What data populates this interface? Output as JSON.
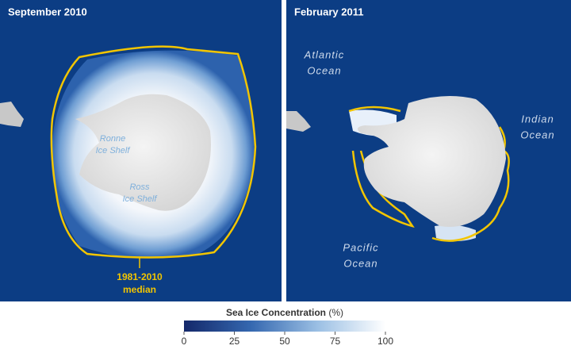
{
  "panels": [
    {
      "title": "September 2010",
      "labels": [
        {
          "lines": [
            "Ronne",
            "Ice Shelf"
          ]
        },
        {
          "lines": [
            "Ross",
            "Ice Shelf"
          ]
        }
      ],
      "median_label": [
        "1981-2010",
        "median"
      ]
    },
    {
      "title": "February 2011",
      "labels": [
        {
          "lines": [
            "Atlantic",
            "Ocean"
          ]
        },
        {
          "lines": [
            "Indian",
            "Ocean"
          ]
        },
        {
          "lines": [
            "Pacific",
            "Ocean"
          ]
        }
      ]
    }
  ],
  "colorbar": {
    "title": "Sea Ice Concentration",
    "unit": "(%)",
    "range": [
      0,
      100
    ],
    "ticks": [
      0,
      25,
      50,
      75,
      100
    ],
    "colors": [
      "#14286a",
      "#3568b0",
      "#9cc0e4",
      "#ffffff"
    ]
  }
}
